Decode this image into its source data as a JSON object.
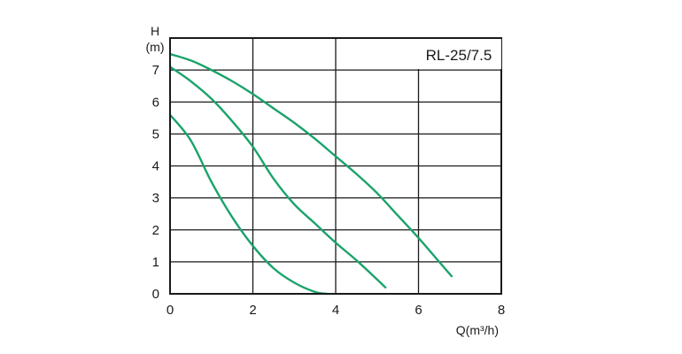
{
  "chart_data": {
    "type": "line",
    "title": "RL-25/7.5",
    "xlabel": "Q(m³/h)",
    "ylabel_top": "H",
    "ylabel_unit": "(m)",
    "xlim": [
      0,
      8
    ],
    "ylim": [
      0,
      8
    ],
    "x_ticks": [
      "0",
      "2",
      "4",
      "6",
      "8"
    ],
    "y_ticks": [
      "0",
      "1",
      "2",
      "3",
      "4",
      "5",
      "6",
      "7"
    ],
    "grid": true,
    "line_color": "#1aa36b",
    "series": [
      {
        "x": [
          0,
          0.5,
          1,
          1.5,
          2,
          2.5,
          3,
          3.5,
          3.8
        ],
        "y": [
          5.6,
          4.8,
          3.5,
          2.4,
          1.5,
          0.8,
          0.35,
          0.06,
          0.0
        ]
      },
      {
        "x": [
          0,
          0.5,
          1,
          1.5,
          2,
          2.5,
          3,
          3.5,
          4,
          4.5,
          5,
          5.2
        ],
        "y": [
          7.1,
          6.65,
          6.1,
          5.4,
          4.6,
          3.6,
          2.8,
          2.2,
          1.6,
          1.05,
          0.45,
          0.2
        ]
      },
      {
        "x": [
          0,
          0.5,
          1,
          1.5,
          2,
          2.5,
          3,
          3.5,
          4,
          4.5,
          5,
          5.5,
          6,
          6.5,
          6.8
        ],
        "y": [
          7.5,
          7.3,
          7.0,
          6.65,
          6.25,
          5.8,
          5.35,
          4.85,
          4.3,
          3.75,
          3.15,
          2.45,
          1.75,
          1.0,
          0.55
        ]
      }
    ]
  }
}
